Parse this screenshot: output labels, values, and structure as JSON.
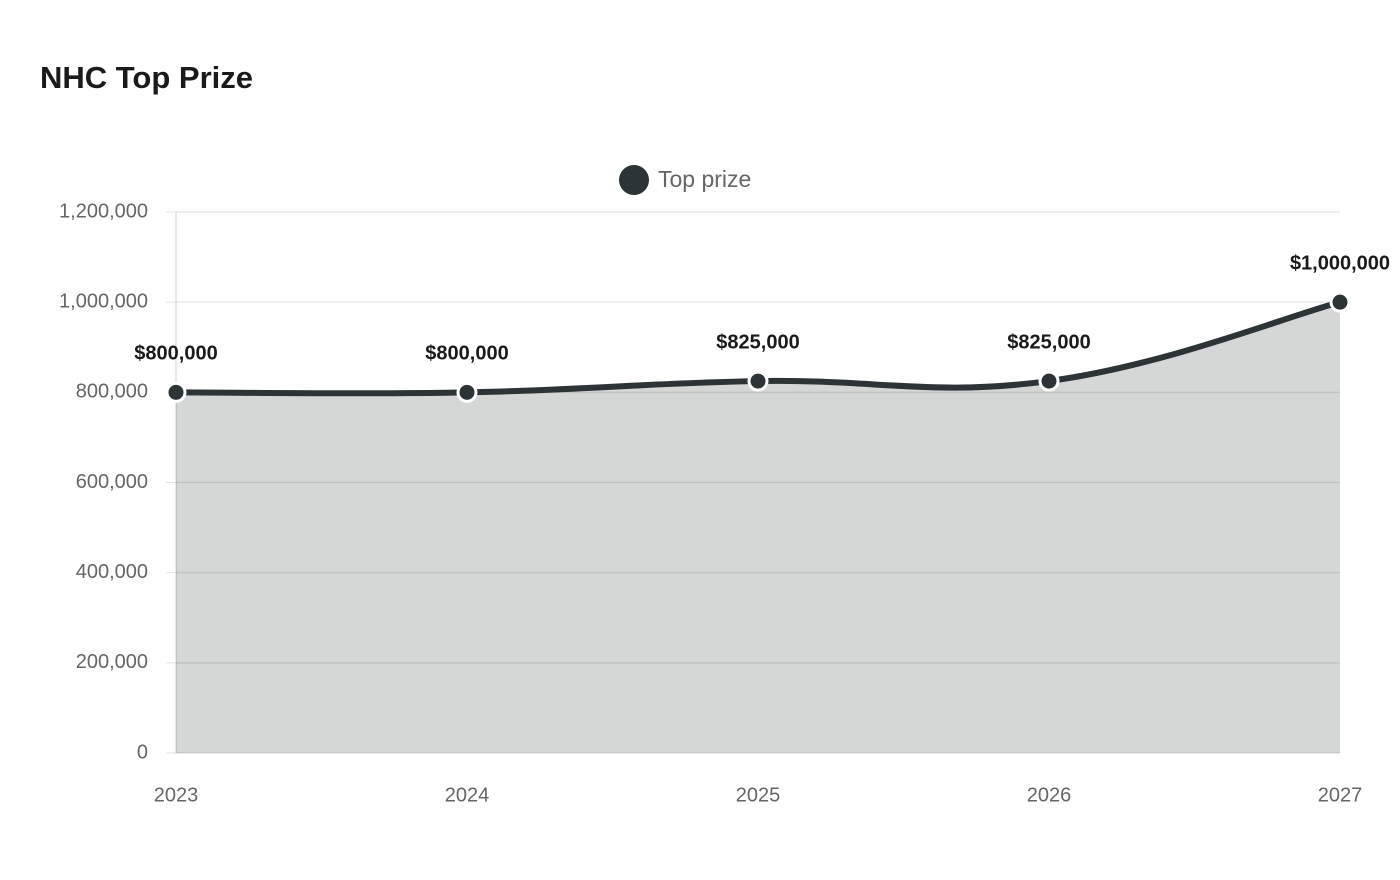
{
  "chart_data": {
    "type": "line",
    "title": "NHC Top Prize",
    "categories": [
      "2023",
      "2024",
      "2025",
      "2026",
      "2027"
    ],
    "series": [
      {
        "name": "Top prize",
        "color": "#2d3436",
        "area_color": "#d5d7d6",
        "values": [
          800000,
          800000,
          825000,
          825000,
          1000000
        ],
        "value_labels": [
          "$800,000",
          "$800,000",
          "$825,000",
          "$825,000",
          "$1,000,000"
        ]
      }
    ],
    "ylim": [
      0,
      1200000
    ],
    "yticks": [
      0,
      {
        "value": 200000,
        "label": "200,000"
      },
      {
        "value": 400000,
        "label": "400,000"
      },
      {
        "value": 600000,
        "label": "600,000"
      },
      {
        "value": 800000,
        "label": "800,000"
      },
      {
        "value": 1000000,
        "label": "1,000,000"
      },
      {
        "value": 1200000,
        "label": "1,200,000"
      }
    ],
    "grid": true,
    "legend": "top"
  }
}
